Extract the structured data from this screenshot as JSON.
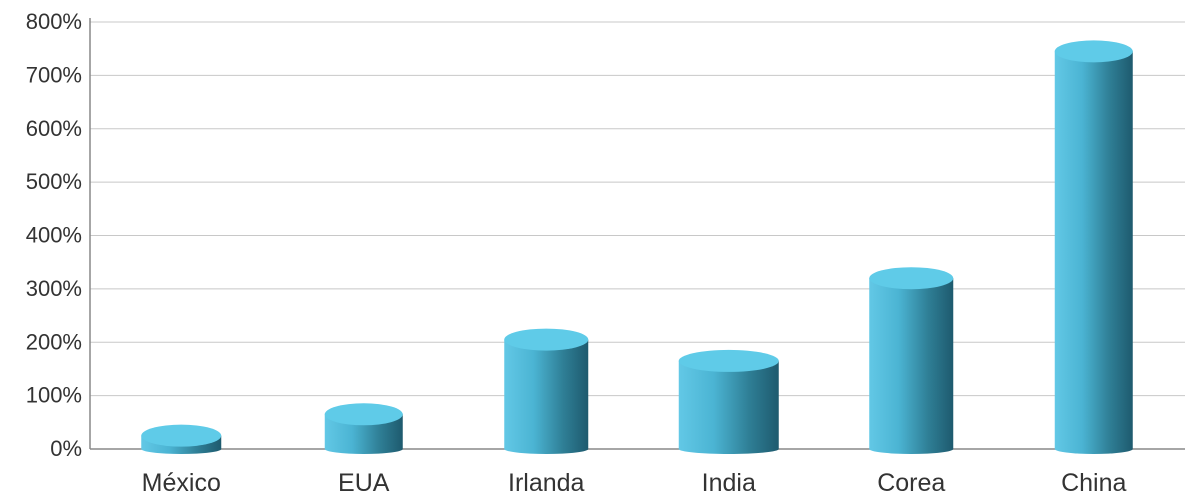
{
  "chart_data": {
    "type": "bar",
    "categories": [
      "México",
      "EUA",
      "Irlanda",
      "India",
      "Corea",
      "China"
    ],
    "values": [
      25,
      65,
      205,
      165,
      320,
      745
    ],
    "ylim": [
      0,
      800
    ],
    "yticks": [
      0,
      100,
      200,
      300,
      400,
      500,
      600,
      700,
      800
    ],
    "ytick_labels": [
      "0%",
      "100%",
      "200%",
      "300%",
      "400%",
      "500%",
      "600%",
      "700%",
      "800%"
    ],
    "grid": true,
    "style": "3d-cylinder",
    "colors": {
      "bar_light": "#62c8e6",
      "bar_mid": "#3fa9c7",
      "bar_dark": "#1e5a6e",
      "top": "#5fcbe8",
      "highlight_label": "#b0234f",
      "label": "#333333",
      "grid": "#c8c8c8",
      "axis": "#888888"
    },
    "highlight_category": "México"
  }
}
